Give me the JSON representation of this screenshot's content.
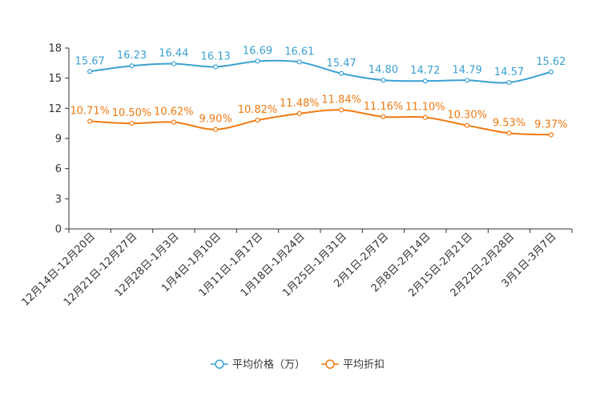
{
  "chart_data": {
    "type": "line",
    "title": "",
    "xlabel": "",
    "ylabel": "",
    "ylim": [
      0,
      18
    ],
    "yticks": [
      0,
      3,
      6,
      9,
      12,
      15,
      18
    ],
    "grid": false,
    "legend_position": "bottom-center",
    "categories": [
      "12月14日-12月20日",
      "12月21日-12月27日",
      "12月28日-1月3日",
      "1月4日-1月10日",
      "1月11日-1月17日",
      "1月18日-1月24日",
      "1月25日-1月31日",
      "2月1日-2月7日",
      "2月8日-2月14日",
      "2月15日-2月21日",
      "2月22日-2月28日",
      "3月1日-3月7日"
    ],
    "series": [
      {
        "name": "平均价格（万）",
        "color": "#3ba1d2",
        "values": [
          15.67,
          16.23,
          16.44,
          16.13,
          16.69,
          16.61,
          15.47,
          14.8,
          14.72,
          14.79,
          14.57,
          15.62
        ],
        "labels": [
          "15.67",
          "16.23",
          "16.44",
          "16.13",
          "16.69",
          "16.61",
          "15.47",
          "14.80",
          "14.72",
          "14.79",
          "14.57",
          "15.62"
        ]
      },
      {
        "name": "平均折扣",
        "color": "#f07a12",
        "values": [
          10.71,
          10.5,
          10.62,
          9.9,
          10.82,
          11.48,
          11.84,
          11.16,
          11.1,
          10.3,
          9.53,
          9.37
        ],
        "labels": [
          "10.71%",
          "10.50%",
          "10.62%",
          "9.90%",
          "10.82%",
          "11.48%",
          "11.84%",
          "11.16%",
          "11.10%",
          "10.30%",
          "9.53%",
          "9.37%"
        ]
      }
    ]
  }
}
